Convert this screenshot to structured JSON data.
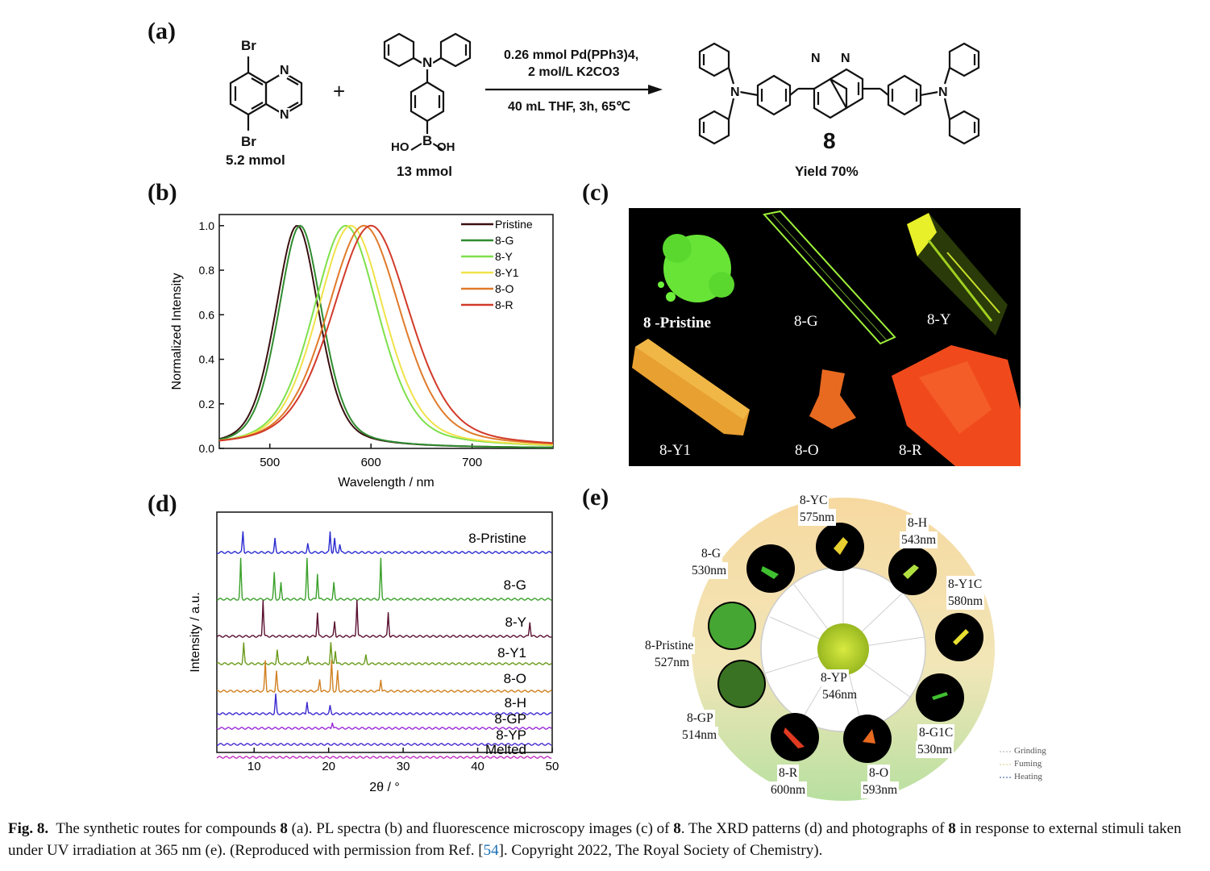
{
  "panels": {
    "a": "(a)",
    "b": "(b)",
    "c": "(c)",
    "d": "(d)",
    "e": "(e)"
  },
  "scheme": {
    "reactant1": {
      "amount": "5.2 mmol",
      "atoms": [
        "Br",
        "Br",
        "N",
        "N"
      ]
    },
    "plus": "+",
    "reactant2": {
      "amount": "13 mmol",
      "atoms": [
        "N",
        "B",
        "HO",
        "OH"
      ]
    },
    "conditions_top": [
      "0.26 mmol Pd(PPh3)4,",
      "2 mol/L K2CO3"
    ],
    "conditions_bottom": "40 mL THF, 3h, 65℃",
    "product": {
      "number": "8",
      "yield": "Yield 70%",
      "atoms": [
        "N",
        "N",
        "N",
        "N"
      ]
    }
  },
  "chart_pl": {
    "chart_data": {
      "type": "line",
      "xlabel": "Wavelength / nm",
      "ylabel": "Normalized Intensity",
      "xlim": [
        450,
        780
      ],
      "ylim": [
        0,
        1.05
      ],
      "xticks": [
        500,
        600,
        700
      ],
      "yticks": [
        "0.0",
        "0.2",
        "0.4",
        "0.6",
        "0.8",
        "1.0"
      ],
      "legend_position": "top-right",
      "series": [
        {
          "name": "Pristine",
          "color": "#3a1010",
          "peak": 527,
          "fwhm": 52
        },
        {
          "name": "8-G",
          "color": "#2e8b2e",
          "peak": 530,
          "fwhm": 52
        },
        {
          "name": "8-Y",
          "color": "#7ee04a",
          "peak": 575,
          "fwhm": 78
        },
        {
          "name": "8-Y1",
          "color": "#f0e24a",
          "peak": 580,
          "fwhm": 80
        },
        {
          "name": "8-O",
          "color": "#e07a2a",
          "peak": 593,
          "fwhm": 88
        },
        {
          "name": "8-R",
          "color": "#d23a2a",
          "peak": 600,
          "fwhm": 92
        }
      ]
    }
  },
  "photos_c": [
    {
      "label": "8 -Pristine",
      "color": "#6ef03a"
    },
    {
      "label": "8-G",
      "color": "#9ef03a"
    },
    {
      "label": "8-Y",
      "color": "#d8e62a"
    },
    {
      "label": "8-Y1",
      "color": "#f0a030"
    },
    {
      "label": "8-O",
      "color": "#e86a20"
    },
    {
      "label": "8-R",
      "color": "#f04a1c"
    }
  ],
  "chart_xrd": {
    "chart_data": {
      "type": "line",
      "xlabel": "2θ / °",
      "ylabel": "Intensity / a.u.",
      "xlim": [
        5,
        50
      ],
      "xticks": [
        10,
        20,
        30,
        40,
        50
      ],
      "series": [
        {
          "name": "8-Pristine",
          "color": "#2a2ad0",
          "peaks": [
            8.5,
            12.8,
            17.2,
            20.2,
            20.8,
            21.5
          ]
        },
        {
          "name": "8-G",
          "color": "#3aa02a",
          "peaks": [
            8.2,
            12.7,
            13.6,
            17.1,
            18.5,
            20.7,
            27.0
          ]
        },
        {
          "name": "8-Y",
          "color": "#5a1030",
          "peaks": [
            11.2,
            18.5,
            20.8,
            23.8,
            28.0,
            47.0
          ]
        },
        {
          "name": "8-Y1",
          "color": "#6a9a1a",
          "peaks": [
            8.6,
            13.1,
            17.2,
            20.3,
            20.9,
            25.0
          ]
        },
        {
          "name": "8-O",
          "color": "#d08020",
          "peaks": [
            11.5,
            13.0,
            18.8,
            20.4,
            21.2,
            27.0
          ]
        },
        {
          "name": "8-H",
          "color": "#3a2ad0",
          "peaks": [
            12.9,
            17.1,
            20.2
          ]
        },
        {
          "name": "8-GP",
          "color": "#9a2ad8",
          "peaks": [
            20.5
          ]
        },
        {
          "name": "8-YP",
          "color": "#4a2ad0",
          "peaks": []
        },
        {
          "name": "Melted",
          "color": "#c030c0",
          "peaks": []
        }
      ]
    }
  },
  "stimuli_e": {
    "center": {
      "name": "8-YP",
      "wavelength": "546nm"
    },
    "states": [
      {
        "name": "8-YC",
        "wavelength": "575nm"
      },
      {
        "name": "8-H",
        "wavelength": "543nm"
      },
      {
        "name": "8-Y1C",
        "wavelength": "580nm"
      },
      {
        "name": "8-G1C",
        "wavelength": "530nm"
      },
      {
        "name": "8-O",
        "wavelength": "593nm"
      },
      {
        "name": "8-R",
        "wavelength": "600nm"
      },
      {
        "name": "8-GP",
        "wavelength": "514nm"
      },
      {
        "name": "8-Pristine",
        "wavelength": "527nm"
      },
      {
        "name": "8-G",
        "wavelength": "530nm"
      }
    ],
    "legend": [
      "Grinding",
      "Fuming",
      "Heating"
    ]
  },
  "caption": {
    "fig": "Fig. 8.",
    "text1": "The synthetic routes for compounds ",
    "b1": "8",
    "text2": " (a). PL spectra (b) and fluorescence microscopy images (c) of ",
    "b2": "8",
    "text3": ". The XRD patterns (d) and photographs of ",
    "b3": "8",
    "text4": " in response to external stimuli taken under UV irradiation at 365 nm (e). (Reproduced with permission from Ref. [",
    "ref": "54",
    "text5": "]. Copyright 2022, The Royal Society of Chemistry)."
  }
}
